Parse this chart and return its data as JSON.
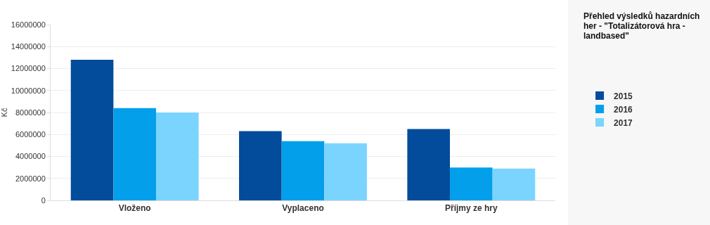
{
  "chart_data": {
    "type": "bar",
    "title": "Přehled výsledků hazardních her - \"Totalizátorová hra - landbased\"",
    "ylabel": "Kč",
    "categories": [
      "Vloženo",
      "Vyplaceno",
      "Příjmy ze hry"
    ],
    "series": [
      {
        "name": "2015",
        "color": "#034b9b",
        "values": [
          12800000,
          6300000,
          6500000
        ]
      },
      {
        "name": "2016",
        "color": "#039fea",
        "values": [
          8400000,
          5400000,
          3000000
        ]
      },
      {
        "name": "2017",
        "color": "#7bd4fe",
        "values": [
          8000000,
          5200000,
          2900000
        ]
      }
    ],
    "ylim": [
      0,
      16000000
    ],
    "yticks": [
      0,
      2000000,
      4000000,
      6000000,
      8000000,
      10000000,
      12000000,
      14000000,
      16000000
    ],
    "grid": "y",
    "legend": "right"
  }
}
